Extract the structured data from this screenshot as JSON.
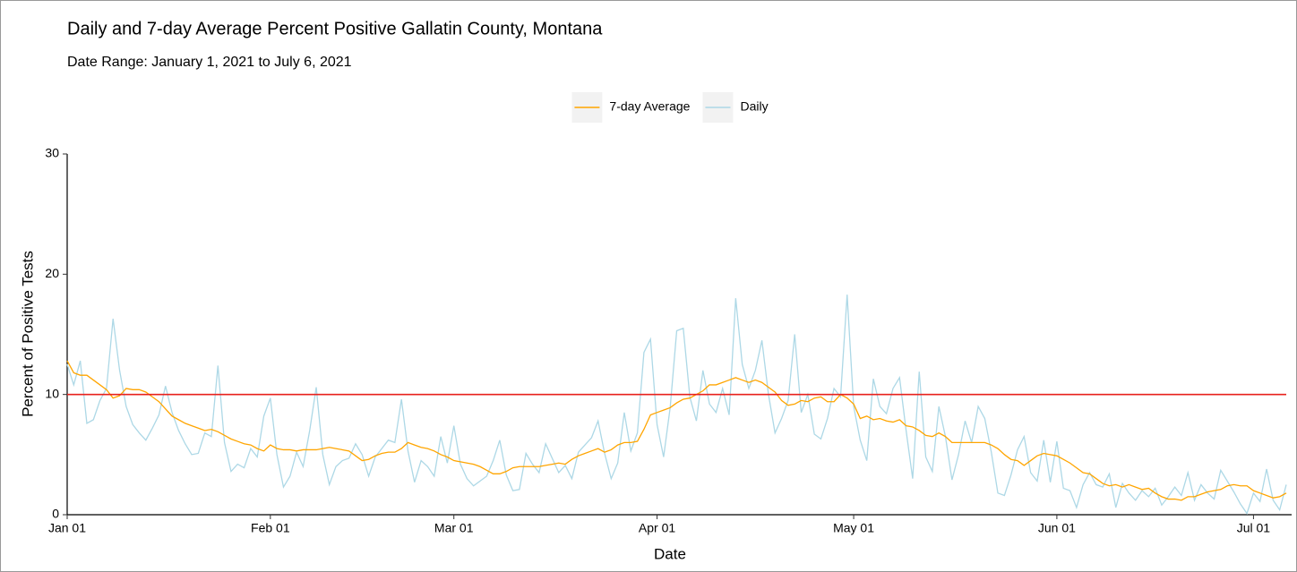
{
  "chart_data": {
    "type": "line",
    "title": "Daily and 7-day Average Percent Positive Gallatin County, Montana",
    "subtitle": "Date Range: January 1, 2021 to July 6, 2021",
    "x_label": "Date",
    "y_label": "Percent of Positive Tests",
    "legend": "top",
    "categories": [
      "Jan 01",
      null,
      null,
      null,
      null,
      null,
      null,
      null,
      null,
      null,
      null,
      null,
      null,
      null,
      null,
      null,
      null,
      null,
      null,
      null,
      null,
      null,
      null,
      null,
      null,
      null,
      null,
      null,
      null,
      null,
      null,
      "Feb 01",
      null,
      null,
      null,
      null,
      null,
      null,
      null,
      null,
      null,
      null,
      null,
      null,
      null,
      null,
      null,
      null,
      null,
      null,
      null,
      null,
      null,
      null,
      null,
      null,
      null,
      null,
      null,
      "Mar 01",
      null,
      null,
      null,
      null,
      null,
      null,
      null,
      null,
      null,
      null,
      null,
      null,
      null,
      null,
      null,
      null,
      null,
      null,
      null,
      null,
      null,
      null,
      null,
      null,
      null,
      null,
      null,
      null,
      null,
      null,
      "Apr 01",
      null,
      null,
      null,
      null,
      null,
      null,
      null,
      null,
      null,
      null,
      null,
      null,
      null,
      null,
      null,
      null,
      null,
      null,
      null,
      null,
      null,
      null,
      null,
      null,
      null,
      null,
      null,
      null,
      null,
      "May 01",
      null,
      null,
      null,
      null,
      null,
      null,
      null,
      null,
      null,
      null,
      null,
      null,
      null,
      null,
      null,
      null,
      null,
      null,
      null,
      null,
      null,
      null,
      null,
      null,
      null,
      null,
      null,
      null,
      null,
      null,
      "Jun 01",
      null,
      null,
      null,
      null,
      null,
      null,
      null,
      null,
      null,
      null,
      null,
      null,
      null,
      null,
      null,
      null,
      null,
      null,
      null,
      null,
      null,
      null,
      null,
      null,
      null,
      null,
      null,
      null,
      null,
      "Jul 01",
      null,
      null,
      null,
      null,
      null
    ],
    "series": [
      {
        "name": "7-day Average",
        "color": "#ffa500",
        "values": [
          12.8,
          11.8,
          11.6,
          11.6,
          11.2,
          10.8,
          10.4,
          9.7,
          9.9,
          10.5,
          10.4,
          10.4,
          10.2,
          9.8,
          9.4,
          8.8,
          8.2,
          7.9,
          7.6,
          7.4,
          7.2,
          7.0,
          7.1,
          6.9,
          6.6,
          6.3,
          6.1,
          5.9,
          5.8,
          5.5,
          5.3,
          5.8,
          5.5,
          5.4,
          5.4,
          5.3,
          5.4,
          5.4,
          5.4,
          5.5,
          5.6,
          5.5,
          5.4,
          5.3,
          4.9,
          4.5,
          4.6,
          4.9,
          5.1,
          5.2,
          5.2,
          5.5,
          6.0,
          5.8,
          5.6,
          5.5,
          5.3,
          5.0,
          4.8,
          4.5,
          4.4,
          4.3,
          4.2,
          4.0,
          3.7,
          3.4,
          3.4,
          3.6,
          3.9,
          4.0,
          4.0,
          4.0,
          4.0,
          4.1,
          4.2,
          4.3,
          4.2,
          4.6,
          4.9,
          5.1,
          5.3,
          5.5,
          5.2,
          5.4,
          5.8,
          6.0,
          6.0,
          6.1,
          7.1,
          8.3,
          8.5,
          8.7,
          8.9,
          9.3,
          9.6,
          9.7,
          10.0,
          10.3,
          10.8,
          10.8,
          11.0,
          11.2,
          11.4,
          11.2,
          11.0,
          11.2,
          11.0,
          10.6,
          10.2,
          9.5,
          9.1,
          9.2,
          9.5,
          9.4,
          9.7,
          9.8,
          9.4,
          9.4,
          10.0,
          9.7,
          9.2,
          8.0,
          8.2,
          7.9,
          8.0,
          7.8,
          7.7,
          7.9,
          7.4,
          7.3,
          7.0,
          6.6,
          6.5,
          6.8,
          6.5,
          6.0,
          6.0,
          6.0,
          6.0,
          6.0,
          6.0,
          5.8,
          5.5,
          5.0,
          4.6,
          4.5,
          4.1,
          4.5,
          4.9,
          5.1,
          5.0,
          4.9,
          4.6,
          4.3,
          3.9,
          3.5,
          3.4,
          3.0,
          2.6,
          2.4,
          2.5,
          2.3,
          2.5,
          2.3,
          2.1,
          2.2,
          1.8,
          1.5,
          1.3,
          1.3,
          1.2,
          1.5,
          1.5,
          1.7,
          1.9,
          2.0,
          2.1,
          2.4,
          2.5,
          2.4,
          2.4,
          2.0,
          1.8,
          1.6,
          1.4,
          1.5,
          1.8
        ]
      },
      {
        "name": "Daily",
        "color": "#add8e6",
        "values": [
          12.5,
          10.8,
          12.8,
          7.6,
          7.9,
          9.5,
          10.5,
          16.3,
          12,
          9,
          7.5,
          6.8,
          6.2,
          7.2,
          8.3,
          10.7,
          8.5,
          7,
          5.9,
          5,
          5.1,
          6.8,
          6.5,
          12.4,
          6,
          3.6,
          4.2,
          3.9,
          5.5,
          4.8,
          8.2,
          9.7,
          5,
          2.3,
          3.2,
          5.2,
          4,
          7,
          10.6,
          5,
          2.5,
          4,
          4.5,
          4.7,
          5.9,
          5,
          3.2,
          4.8,
          5.5,
          6.2,
          6,
          9.6,
          5.3,
          2.7,
          4.5,
          4,
          3.2,
          6.5,
          4.3,
          7.4,
          4.2,
          3,
          2.4,
          2.8,
          3.2,
          4.5,
          6.2,
          3.3,
          2,
          2.1,
          5.1,
          4.2,
          3.5,
          5.9,
          4.7,
          3.5,
          4.1,
          3,
          5.2,
          5.8,
          6.4,
          7.8,
          5.1,
          3,
          4.3,
          8.5,
          5.3,
          6.8,
          13.5,
          14.6,
          7.5,
          4.8,
          8.9,
          15.3,
          15.5,
          9.8,
          7.8,
          12,
          9.2,
          8.5,
          10.5,
          8.3,
          18,
          12.5,
          10.5,
          12,
          14.5,
          10,
          6.8,
          8,
          9.5,
          15,
          8.5,
          10,
          6.7,
          6.3,
          8,
          10.5,
          9.8,
          18.3,
          9,
          6.2,
          4.5,
          11.3,
          9,
          8.4,
          10.5,
          11.4,
          7,
          3,
          11.9,
          4.8,
          3.6,
          9,
          6.5,
          2.9,
          5,
          7.8,
          6,
          9,
          8,
          5.2,
          1.8,
          1.6,
          3.3,
          5.4,
          6.5,
          3.5,
          2.8,
          6.2,
          2.7,
          6.1,
          2.2,
          2,
          0.6,
          2.5,
          3.5,
          2.5,
          2.3,
          3.4,
          0.6,
          2.6,
          1.8,
          1.2,
          2,
          1.5,
          2.2,
          0.8,
          1.5,
          2.3,
          1.6,
          3.5,
          1.2,
          2.5,
          1.8,
          1.3,
          3.7,
          2.8,
          1.9,
          0.9,
          0.1,
          1.8,
          1.1,
          3.8,
          1.2,
          0.4,
          2.5
        ]
      }
    ],
    "reference_line": 10,
    "reference_color": "#e8211d",
    "ylim": [
      0,
      30
    ],
    "yticks": [
      0,
      10,
      20,
      30
    ],
    "grid": false
  }
}
